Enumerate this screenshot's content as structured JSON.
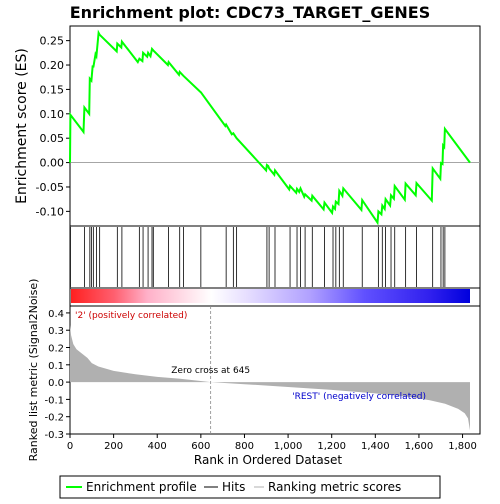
{
  "chart_data": {
    "type": "line",
    "title": "Enrichment plot: CDC73_TARGET_GENES",
    "top_panel": {
      "ylabel": "Enrichment score (ES)",
      "ylim": [
        -0.13,
        0.28
      ],
      "yticks": [
        -0.1,
        -0.05,
        0.0,
        0.05,
        0.1,
        0.15,
        0.2,
        0.25
      ],
      "ytick_labels": [
        "-0.10",
        "-0.05",
        "0.00",
        "0.05",
        "0.10",
        "0.15",
        "0.20",
        "0.25"
      ],
      "series": [
        {
          "name": "Enrichment profile",
          "color": "#00ff00",
          "x": [
            0,
            2,
            62,
            66,
            88,
            91,
            98,
            104,
            107,
            117,
            121,
            131,
            136,
            214,
            217,
            235,
            238,
            311,
            318,
            332,
            335,
            354,
            358,
            369,
            376,
            382,
            449,
            452,
            500,
            503,
            520,
            595,
            600,
            712,
            716,
            742,
            749,
            764,
            899,
            903,
            909,
            913,
            937,
            940,
            1005,
            1009,
            1037,
            1041,
            1051,
            1057,
            1074,
            1078,
            1108,
            1111,
            1163,
            1167,
            1202,
            1206,
            1215,
            1219,
            1231,
            1235,
            1249,
            1253,
            1336,
            1340,
            1410,
            1414,
            1428,
            1432,
            1443,
            1447,
            1468,
            1472,
            1485,
            1489,
            1535,
            1539,
            1585,
            1589,
            1659,
            1663,
            1698,
            1701,
            1708,
            1711,
            1716,
            1719,
            1834
          ],
          "y": [
            0.0,
            0.098,
            0.063,
            0.113,
            0.1,
            0.172,
            0.168,
            0.199,
            0.195,
            0.222,
            0.218,
            0.266,
            0.262,
            0.228,
            0.244,
            0.236,
            0.248,
            0.206,
            0.213,
            0.208,
            0.225,
            0.217,
            0.225,
            0.218,
            0.233,
            0.23,
            0.2,
            0.206,
            0.18,
            0.186,
            0.178,
            0.146,
            0.144,
            0.075,
            0.078,
            0.058,
            0.06,
            0.05,
            -0.016,
            -0.005,
            -0.007,
            -0.012,
            -0.025,
            -0.016,
            -0.055,
            -0.048,
            -0.062,
            -0.054,
            -0.06,
            -0.053,
            -0.07,
            -0.065,
            -0.078,
            -0.068,
            -0.096,
            -0.082,
            -0.103,
            -0.09,
            -0.095,
            -0.08,
            -0.085,
            -0.058,
            -0.068,
            -0.053,
            -0.097,
            -0.077,
            -0.123,
            -0.1,
            -0.106,
            -0.088,
            -0.095,
            -0.075,
            -0.088,
            -0.067,
            -0.074,
            -0.048,
            -0.076,
            -0.043,
            -0.067,
            -0.042,
            -0.078,
            -0.012,
            -0.033,
            -0.001,
            -0.003,
            0.035,
            0.032,
            0.069,
            0.0
          ]
        }
      ]
    },
    "hits_panel": {
      "hit_positions": [
        2,
        66,
        91,
        98,
        107,
        121,
        136,
        217,
        238,
        318,
        335,
        358,
        376,
        382,
        452,
        503,
        520,
        600,
        716,
        749,
        764,
        903,
        913,
        940,
        1009,
        1041,
        1057,
        1078,
        1111,
        1167,
        1206,
        1219,
        1235,
        1253,
        1340,
        1414,
        1432,
        1447,
        1472,
        1489,
        1539,
        1589,
        1663,
        1701,
        1711,
        1719
      ]
    },
    "gradient_bar": {
      "stops": [
        {
          "at": 0,
          "color": "#ff2020"
        },
        {
          "at": 200,
          "color": "#ff6070"
        },
        {
          "at": 350,
          "color": "#ffb0c8"
        },
        {
          "at": 645,
          "color": "#ffffff"
        },
        {
          "at": 800,
          "color": "#e8e0ff"
        },
        {
          "at": 1100,
          "color": "#b0a0ff"
        },
        {
          "at": 1350,
          "color": "#6050ff"
        },
        {
          "at": 1650,
          "color": "#3020ee"
        },
        {
          "at": 1834,
          "color": "#0000dd"
        }
      ]
    },
    "bottom_panel": {
      "xlabel": "Rank in Ordered Dataset",
      "ylabel": "Ranked list metric (Signal2Noise)",
      "xlim": [
        0,
        1880
      ],
      "ylim": [
        -0.3,
        0.44
      ],
      "xticks": [
        0,
        200,
        400,
        600,
        800,
        1000,
        1200,
        1400,
        1600,
        1800
      ],
      "xtick_labels": [
        "0",
        "200",
        "400",
        "600",
        "800",
        "1,000",
        "1,200",
        "1,400",
        "1,600",
        "1,800"
      ],
      "yticks": [
        -0.3,
        -0.2,
        -0.1,
        0.0,
        0.1,
        0.2,
        0.3,
        0.4
      ],
      "ytick_labels": [
        "-0.3",
        "-0.2",
        "-0.1",
        "0.0",
        "0.1",
        "0.2",
        "0.3",
        "0.4"
      ],
      "metric_x": [
        0,
        5,
        15,
        30,
        50,
        80,
        100,
        130,
        200,
        300,
        400,
        500,
        645,
        800,
        1000,
        1200,
        1400,
        1550,
        1650,
        1720,
        1780,
        1810,
        1825,
        1834
      ],
      "metric_y": [
        0.33,
        0.27,
        0.22,
        0.19,
        0.17,
        0.14,
        0.11,
        0.09,
        0.065,
        0.045,
        0.03,
        0.02,
        0.0,
        -0.012,
        -0.028,
        -0.045,
        -0.065,
        -0.085,
        -0.105,
        -0.125,
        -0.155,
        -0.18,
        -0.21,
        -0.28
      ],
      "fill_color": "#b0b0b0",
      "zero_cross_label": "Zero cross at 645",
      "zero_cross_x": 645,
      "pos_label": "'2' (positively correlated)",
      "neg_label": "'REST' (negatively correlated)",
      "pos_color": "#cc0000",
      "neg_color": "#0000cc"
    },
    "legend": {
      "position": "bottom",
      "entries": [
        {
          "label": "Enrichment profile",
          "color": "#00ff00"
        },
        {
          "label": "Hits",
          "color": "#000000"
        },
        {
          "label": "Ranking metric scores",
          "color": "#b0b0b0"
        }
      ]
    }
  }
}
